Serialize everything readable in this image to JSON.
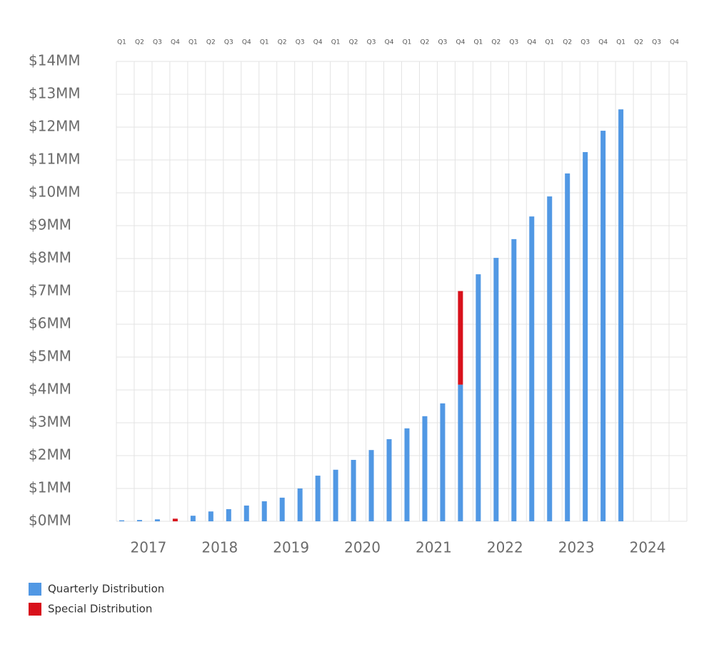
{
  "chart_data": {
    "type": "stacked-bar",
    "categories": [
      "Q1",
      "Q2",
      "Q3",
      "Q4",
      "Q1",
      "Q2",
      "Q3",
      "Q4",
      "Q1",
      "Q2",
      "Q3",
      "Q4",
      "Q1",
      "Q2",
      "Q3",
      "Q4",
      "Q1",
      "Q2",
      "Q3",
      "Q4",
      "Q1",
      "Q2",
      "Q3",
      "Q4",
      "Q1",
      "Q2",
      "Q3",
      "Q4",
      "Q1",
      "Q2",
      "Q3",
      "Q4"
    ],
    "years": [
      "2017",
      "2018",
      "2019",
      "2020",
      "2021",
      "2022",
      "2023",
      "2024"
    ],
    "series": [
      {
        "name": "Quarterly Distribution",
        "color": "#5198e4",
        "values": [
          0.03,
          0.04,
          0.06,
          0,
          0.17,
          0.3,
          0.37,
          0.48,
          0.61,
          0.72,
          1.0,
          1.39,
          1.57,
          1.87,
          2.17,
          2.5,
          2.83,
          3.2,
          3.59,
          4.16,
          7.52,
          8.02,
          8.59,
          9.28,
          9.89,
          10.59,
          11.24,
          11.89,
          12.54,
          null,
          null,
          null
        ]
      },
      {
        "name": "Special Distribution",
        "color": "#d8111b",
        "values": [
          null,
          null,
          null,
          0.08,
          null,
          null,
          null,
          null,
          null,
          null,
          null,
          null,
          null,
          null,
          null,
          null,
          null,
          null,
          null,
          2.85,
          null,
          null,
          null,
          null,
          null,
          null,
          null,
          null,
          null,
          null,
          null,
          null
        ]
      }
    ],
    "ylim": [
      0,
      14
    ],
    "yticks": [
      {
        "value": 0,
        "label": "$0MM"
      },
      {
        "value": 1,
        "label": "$1MM"
      },
      {
        "value": 2,
        "label": "$2MM"
      },
      {
        "value": 3,
        "label": "$3MM"
      },
      {
        "value": 4,
        "label": "$4MM"
      },
      {
        "value": 5,
        "label": "$5MM"
      },
      {
        "value": 6,
        "label": "$6MM"
      },
      {
        "value": 7,
        "label": "$7MM"
      },
      {
        "value": 8,
        "label": "$8MM"
      },
      {
        "value": 9,
        "label": "$9MM"
      },
      {
        "value": 10,
        "label": "$10MM"
      },
      {
        "value": 11,
        "label": "$11MM"
      },
      {
        "value": 12,
        "label": "$12MM"
      },
      {
        "value": 13,
        "label": "$13MM"
      },
      {
        "value": 14,
        "label": "$14MM"
      }
    ],
    "grid": true
  }
}
